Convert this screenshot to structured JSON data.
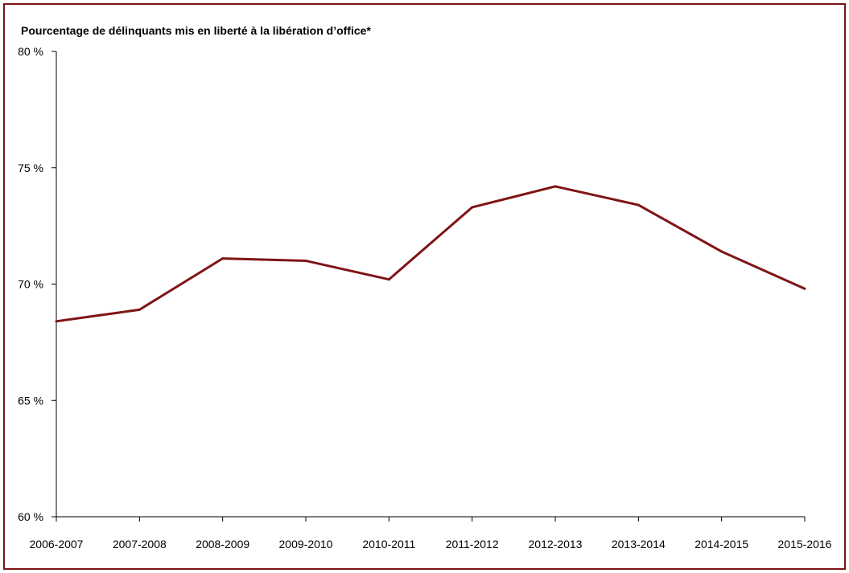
{
  "chart_data": {
    "type": "line",
    "title": "Pourcentage de délinquants mis en liberté à la libération d’office*",
    "xlabel": "",
    "ylabel": "",
    "categories": [
      "2006-2007",
      "2007-2008",
      "2008-2009",
      "2009-2010",
      "2010-2011",
      "2011-2012",
      "2012-2013",
      "2013-2014",
      "2014-2015",
      "2015-2016"
    ],
    "series": [
      {
        "values": [
          68.4,
          68.9,
          71.1,
          71.0,
          70.2,
          73.3,
          74.2,
          73.4,
          71.4,
          69.8
        ]
      }
    ],
    "ylim": [
      60,
      80
    ],
    "yticks": [
      60,
      65,
      70,
      75,
      80
    ],
    "ytick_labels": [
      "60 %",
      "65 %",
      "70 %",
      "75 %",
      "80 %"
    ],
    "grid": false,
    "line_color": "#7f1416",
    "frame_color": "#7f1416"
  }
}
